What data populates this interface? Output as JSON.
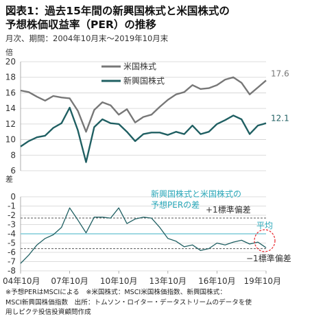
{
  "header": {
    "title_line1": "図表1：過去15年間の新興国株式と米国株式の",
    "title_line2": "予想株価収益率（PER）の推移",
    "subtitle": "月次、期間：2004年10月末〜2019年10月末"
  },
  "notes": {
    "line1": "※予想PERはMSCIによる　※米国株式：MSCI米国株価指数、新興国株式：",
    "line2": "MSCI新興国株価指数　出所：トムソン・ロイター・データストリームのデータを使",
    "line3": "用しピクテ投信投資顧問作成"
  },
  "colors": {
    "us": "#777777",
    "em": "#1f5f62",
    "average": "#7fcbd9",
    "annotation": "#2aa7b8",
    "circle": "#e8232a"
  },
  "chart_data": [
    {
      "type": "line",
      "ylabel": "倍",
      "ylim": [
        6,
        20
      ],
      "yticks": [
        6,
        8,
        10,
        12,
        14,
        16,
        18,
        20
      ],
      "x": [
        "2004-10",
        "2005-04",
        "2005-10",
        "2006-04",
        "2006-10",
        "2007-04",
        "2007-10",
        "2008-04",
        "2008-10",
        "2009-04",
        "2009-10",
        "2010-04",
        "2010-10",
        "2011-04",
        "2011-10",
        "2012-04",
        "2012-10",
        "2013-04",
        "2013-10",
        "2014-04",
        "2014-10",
        "2015-04",
        "2015-10",
        "2016-04",
        "2016-10",
        "2017-04",
        "2017-10",
        "2018-04",
        "2018-10",
        "2019-04",
        "2019-10"
      ],
      "series": [
        {
          "name": "米国株式",
          "end_label": "17.6",
          "values": [
            16.3,
            16.1,
            15.5,
            15.0,
            15.6,
            15.4,
            15.3,
            13.7,
            11.0,
            13.8,
            14.8,
            14.4,
            13.2,
            13.9,
            12.2,
            12.9,
            13.2,
            14.2,
            15.1,
            15.8,
            16.1,
            17.0,
            16.5,
            16.6,
            17.0,
            17.7,
            18.0,
            17.3,
            15.8,
            16.7,
            17.6
          ]
        },
        {
          "name": "新興国株式",
          "end_label": "12.1",
          "values": [
            9.1,
            9.8,
            10.3,
            10.5,
            11.5,
            12.1,
            14.1,
            11.2,
            7.1,
            11.6,
            12.6,
            12.1,
            12.0,
            11.0,
            9.8,
            10.7,
            10.9,
            10.9,
            10.6,
            11.0,
            10.7,
            11.8,
            10.7,
            11.0,
            12.0,
            12.5,
            13.1,
            12.6,
            10.7,
            11.8,
            12.1
          ]
        }
      ]
    },
    {
      "type": "line",
      "ylabel": "差",
      "ylim": [
        -8,
        0
      ],
      "yticks": [
        -8,
        -7,
        -6,
        -5,
        -4,
        -3,
        -2,
        -1,
        0
      ],
      "xticks": [
        "04年10月",
        "07年10月",
        "10年10月",
        "13年10月",
        "16年10月",
        "19年10月"
      ],
      "x": [
        "2004-10",
        "2005-04",
        "2005-10",
        "2006-04",
        "2006-10",
        "2007-04",
        "2007-10",
        "2008-04",
        "2008-10",
        "2009-04",
        "2009-10",
        "2010-04",
        "2010-10",
        "2011-04",
        "2011-10",
        "2012-04",
        "2012-10",
        "2013-04",
        "2013-10",
        "2014-04",
        "2014-10",
        "2015-04",
        "2015-10",
        "2016-04",
        "2016-10",
        "2017-04",
        "2017-10",
        "2018-04",
        "2018-10",
        "2019-04",
        "2019-10"
      ],
      "series": [
        {
          "name": "新興国株式と米国株式の予想PERの差",
          "values": [
            -7.2,
            -6.3,
            -5.2,
            -4.5,
            -4.1,
            -3.3,
            -1.2,
            -2.5,
            -3.9,
            -2.2,
            -2.2,
            -2.3,
            -1.2,
            -2.9,
            -2.4,
            -2.2,
            -2.3,
            -3.3,
            -4.5,
            -4.8,
            -5.4,
            -5.2,
            -5.8,
            -5.6,
            -5.0,
            -5.2,
            -4.9,
            -4.7,
            -5.1,
            -4.9,
            -5.5
          ]
        }
      ],
      "reference_lines": [
        {
          "label": "平均",
          "value": -4.0
        },
        {
          "label": "+1標準偏差",
          "value": -2.3
        },
        {
          "label": "−1標準偏差",
          "value": -5.6
        }
      ],
      "annotation": "新興国株式と米国株式の予想PERの差"
    }
  ],
  "legend": {
    "us": "米国株式",
    "em": "新興国株式"
  },
  "annotation_lines": [
    "新興国株式と米国株式の",
    "予想PERの差"
  ]
}
